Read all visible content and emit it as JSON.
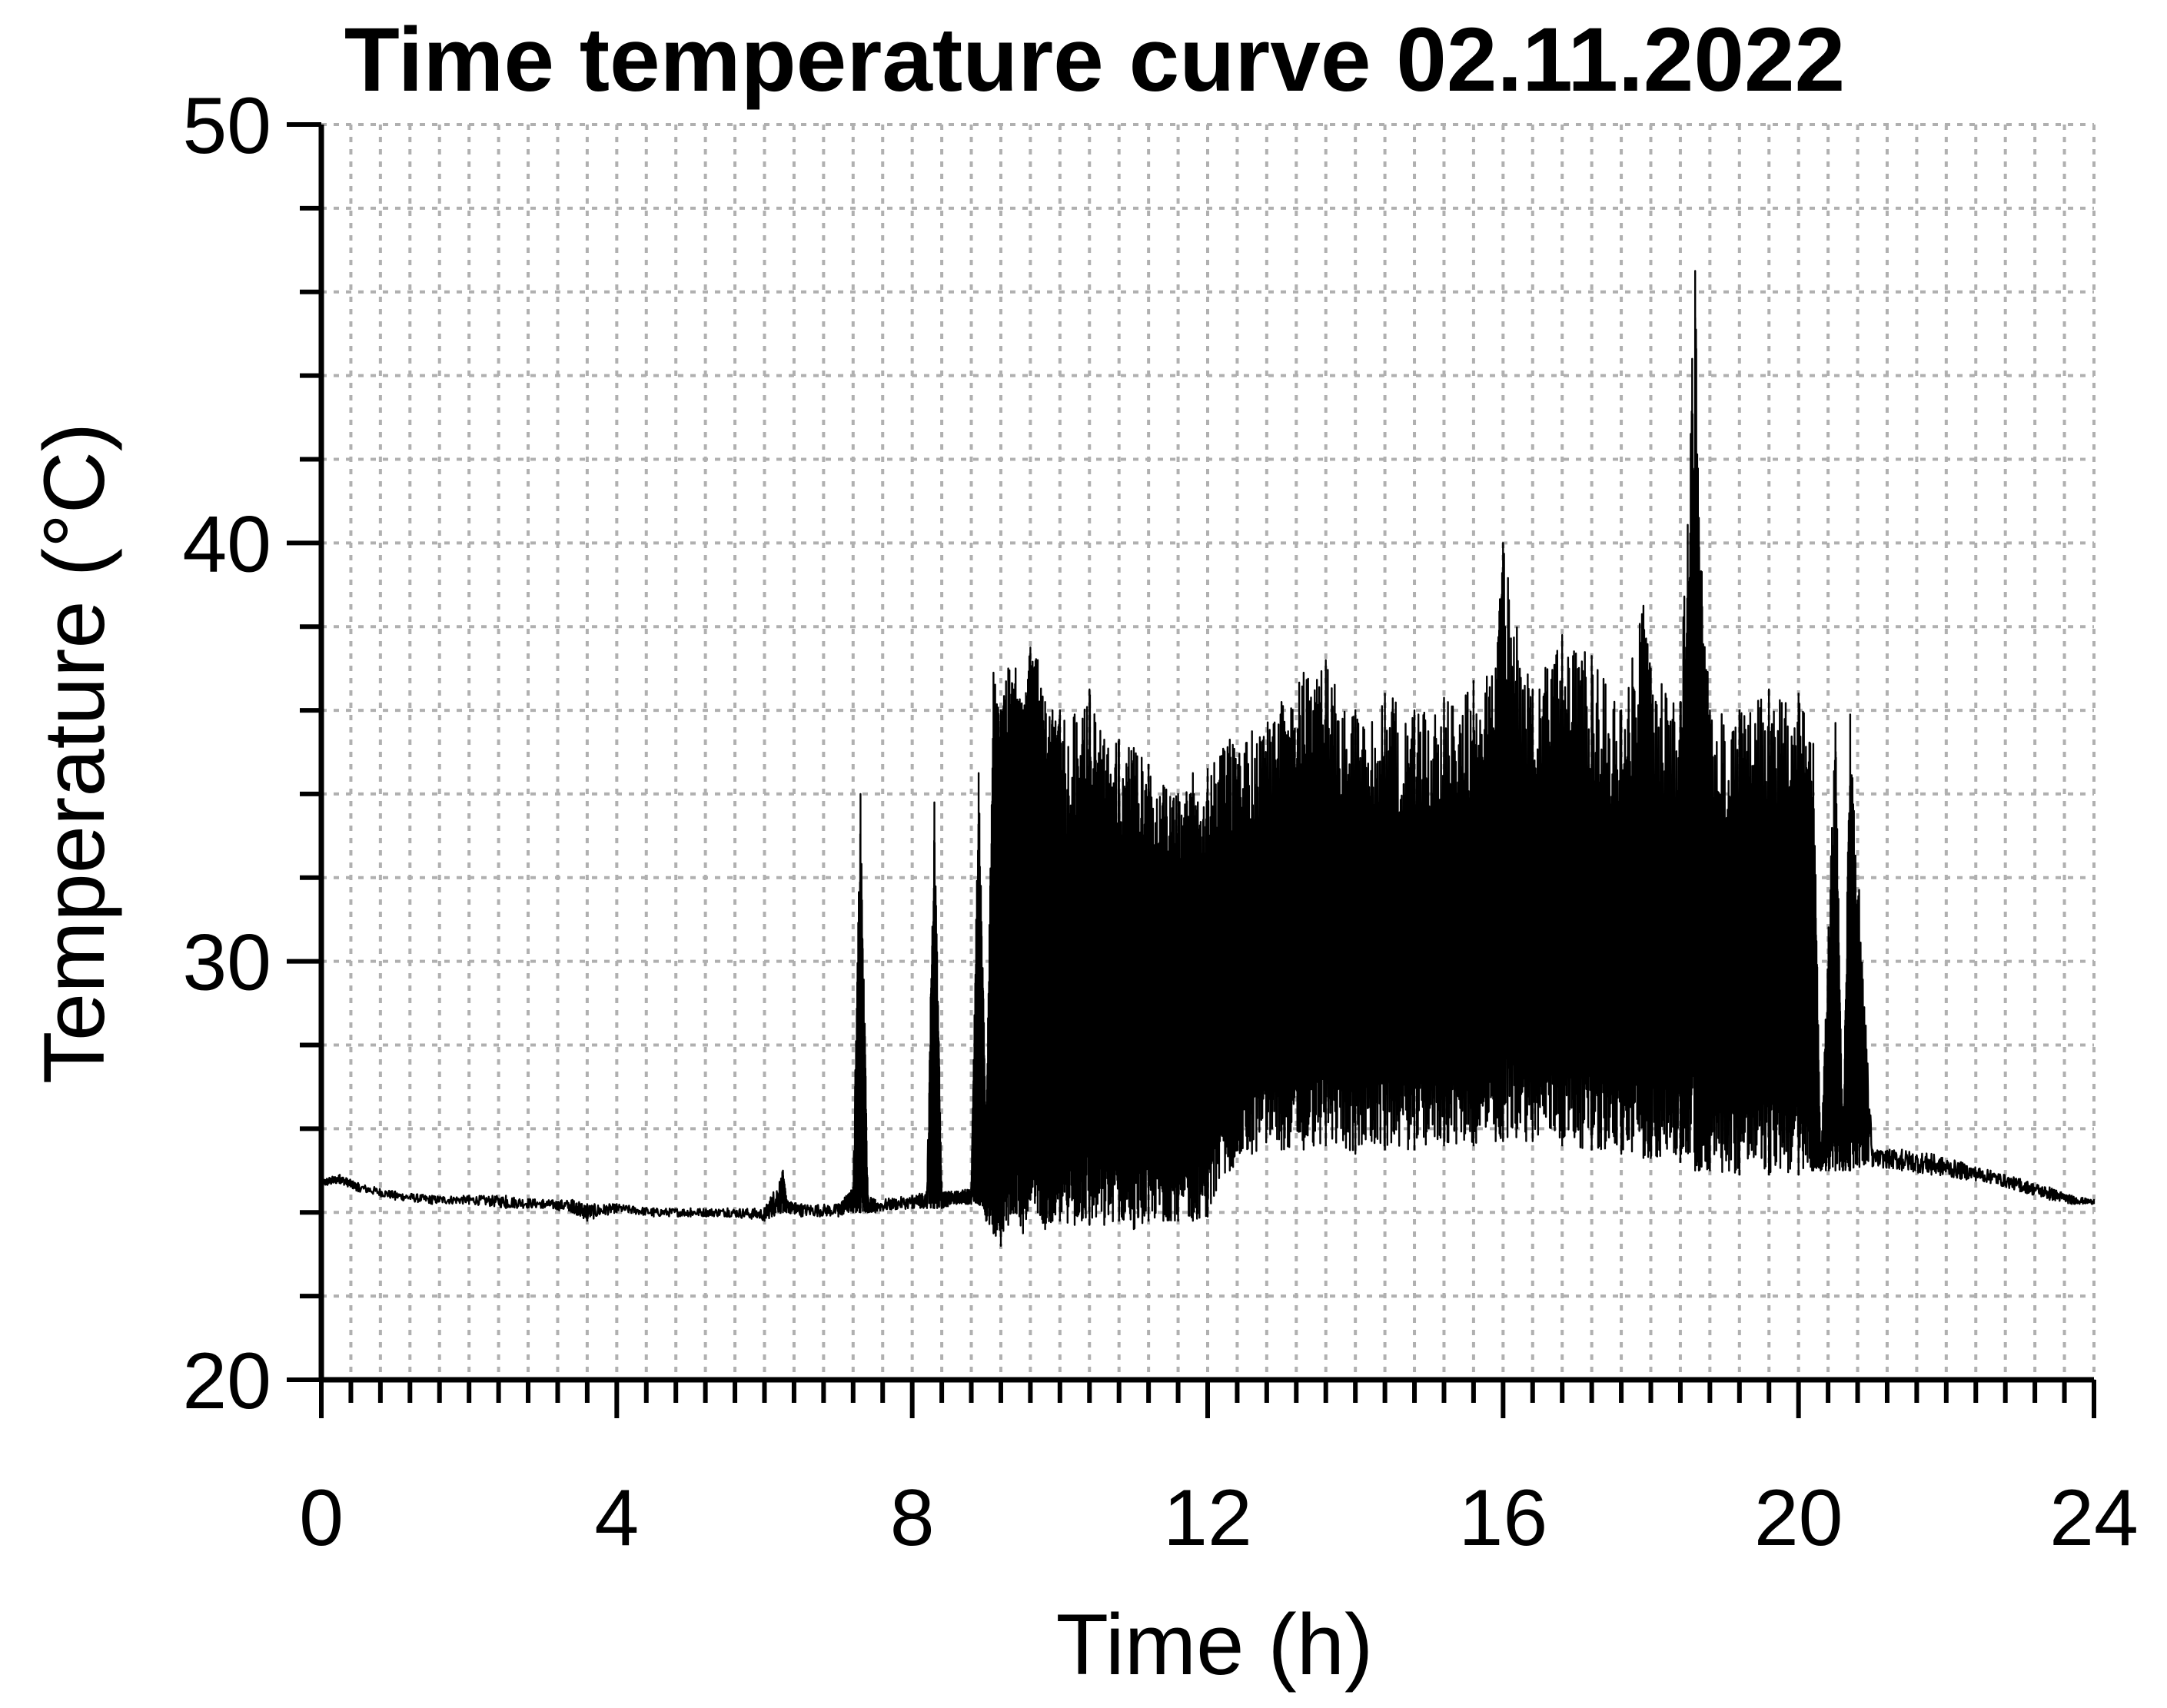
{
  "chart_data": {
    "type": "line",
    "title": "Time temperature curve 02.11.2022",
    "xlabel": "Time (h)",
    "ylabel": "Temperature (°C)",
    "xlim": [
      0,
      24
    ],
    "ylim": [
      20,
      50
    ],
    "x_major_ticks": [
      0,
      4,
      8,
      12,
      16,
      20,
      24
    ],
    "x_tick_labels": [
      "0",
      "4",
      "8",
      "12",
      "16",
      "20",
      "24"
    ],
    "x_minor_step": 0.4,
    "y_major_ticks": [
      20,
      30,
      40,
      50
    ],
    "y_tick_labels": [
      "20",
      "30",
      "40",
      "50"
    ],
    "y_minor_step": 2,
    "grid": true,
    "legend": "none",
    "series": [
      {
        "color": "#000000",
        "x": [
          0.0,
          0.25,
          0.5,
          1.0,
          1.5,
          2.0,
          2.5,
          3.0,
          3.4,
          3.6,
          4.0,
          4.5,
          5.0,
          5.5,
          6.0,
          6.25,
          6.3,
          6.5,
          7.0,
          7.2,
          7.3,
          7.4,
          7.5,
          8.0,
          8.2,
          8.3,
          8.4,
          8.6,
          8.8,
          8.9,
          9.0,
          9.1,
          9.2,
          9.3,
          9.4,
          9.5,
          9.6,
          9.7,
          9.8,
          9.9,
          10.0,
          10.2,
          10.4,
          10.6,
          10.8,
          11.0,
          11.2,
          11.4,
          11.6,
          11.8,
          12.0,
          12.3,
          12.6,
          13.0,
          13.3,
          13.6,
          14.0,
          14.4,
          14.8,
          15.2,
          15.6,
          15.9,
          16.0,
          16.4,
          16.8,
          17.2,
          17.6,
          17.9,
          18.0,
          18.4,
          18.6,
          18.65,
          18.8,
          19.2,
          19.6,
          20.0,
          20.2,
          20.3,
          20.5,
          20.6,
          20.7,
          21.0,
          21.4,
          21.8,
          22.2,
          22.6,
          23.0,
          23.4,
          23.7,
          24.0
        ],
        "y_low": [
          24.6,
          24.7,
          24.5,
          24.3,
          24.2,
          24.2,
          24.1,
          24.1,
          24.0,
          23.8,
          24.0,
          23.9,
          23.9,
          23.9,
          23.8,
          24.0,
          24.0,
          23.9,
          23.9,
          24.0,
          24.0,
          24.0,
          24.0,
          24.1,
          24.1,
          24.1,
          24.1,
          24.2,
          24.2,
          24.2,
          23.8,
          23.5,
          23.2,
          23.7,
          24.0,
          23.5,
          24.3,
          24.0,
          23.6,
          23.8,
          23.8,
          23.7,
          23.7,
          23.7,
          23.8,
          23.6,
          23.8,
          23.8,
          23.8,
          23.8,
          23.9,
          25.0,
          25.4,
          25.5,
          25.5,
          25.6,
          25.4,
          25.5,
          25.5,
          25.6,
          25.6,
          25.7,
          25.7,
          25.7,
          25.6,
          25.5,
          25.4,
          25.3,
          25.3,
          25.2,
          25.0,
          25.0,
          25.0,
          24.9,
          24.9,
          24.9,
          25.0,
          25.0,
          25.0,
          25.0,
          25.0,
          25.1,
          25.0,
          24.9,
          24.8,
          24.7,
          24.5,
          24.3,
          24.2,
          24.2
        ],
        "y_high": [
          24.8,
          24.9,
          24.7,
          24.5,
          24.4,
          24.4,
          24.4,
          24.3,
          24.3,
          24.2,
          24.2,
          24.1,
          24.1,
          24.1,
          24.1,
          25.0,
          24.3,
          24.2,
          24.2,
          24.6,
          34.0,
          24.4,
          24.3,
          24.4,
          24.5,
          33.8,
          24.5,
          24.5,
          24.6,
          34.5,
          26.0,
          36.9,
          36.0,
          37.0,
          37.0,
          36.0,
          37.5,
          37.2,
          36.2,
          36.0,
          36.0,
          35.9,
          36.5,
          35.3,
          35.3,
          35.1,
          34.7,
          34.2,
          34.0,
          34.5,
          34.6,
          35.3,
          35.5,
          36.2,
          36.9,
          37.2,
          36.0,
          36.4,
          36.0,
          36.3,
          36.7,
          37.0,
          40.0,
          36.5,
          37.8,
          37.3,
          36.0,
          38.5,
          37.0,
          36.2,
          46.5,
          40.6,
          36.0,
          36.0,
          36.5,
          36.4,
          35.2,
          25.3,
          35.7,
          25.4,
          35.9,
          25.5,
          25.5,
          25.4,
          25.2,
          25.0,
          24.8,
          24.6,
          24.4,
          24.3
        ]
      }
    ]
  }
}
